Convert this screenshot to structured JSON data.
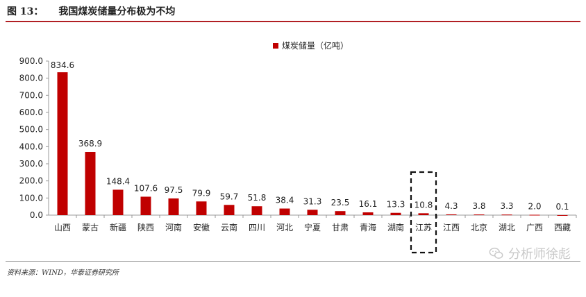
{
  "header": {
    "figure_number": "图 13：",
    "title": "我国煤炭储量分布极为不均"
  },
  "footer": {
    "source": "资料来源：WIND，华泰证券研究所"
  },
  "watermark": {
    "text": "分析师徐彪",
    "icon": "wechat-icon"
  },
  "chart_data": {
    "type": "bar",
    "title": "",
    "xlabel": "",
    "ylabel": "",
    "ylim": [
      0,
      900
    ],
    "yticks": [
      "900.0",
      "800.0",
      "700.0",
      "600.0",
      "500.0",
      "400.0",
      "300.0",
      "200.0",
      "100.0",
      "0.0"
    ],
    "legend": {
      "position": "top-center",
      "label": "煤炭储量（亿吨）"
    },
    "bar_color": "#c00000",
    "categories": [
      "山西",
      "蒙古",
      "新疆",
      "陕西",
      "河南",
      "安徽",
      "云南",
      "四川",
      "河北",
      "宁夏",
      "甘肃",
      "青海",
      "湖南",
      "江苏",
      "江西",
      "北京",
      "湖北",
      "广西",
      "西藏"
    ],
    "series": [
      {
        "name": "煤炭储量（亿吨）",
        "values": [
          834.6,
          368.9,
          148.4,
          107.6,
          97.5,
          79.9,
          59.7,
          51.8,
          38.4,
          31.3,
          23.5,
          16.1,
          13.3,
          10.8,
          4.3,
          3.8,
          3.3,
          2.0,
          0.1
        ],
        "labels": [
          "834.6",
          "368.9",
          "148.4",
          "107.6",
          "97.5",
          "79.9",
          "59.7",
          "51.8",
          "38.4",
          "31.3",
          "23.5",
          "16.1",
          "13.3",
          "10.8",
          "4.3",
          "3.8",
          "3.3",
          "2.0",
          "0.1"
        ]
      }
    ],
    "highlight": "江苏"
  }
}
